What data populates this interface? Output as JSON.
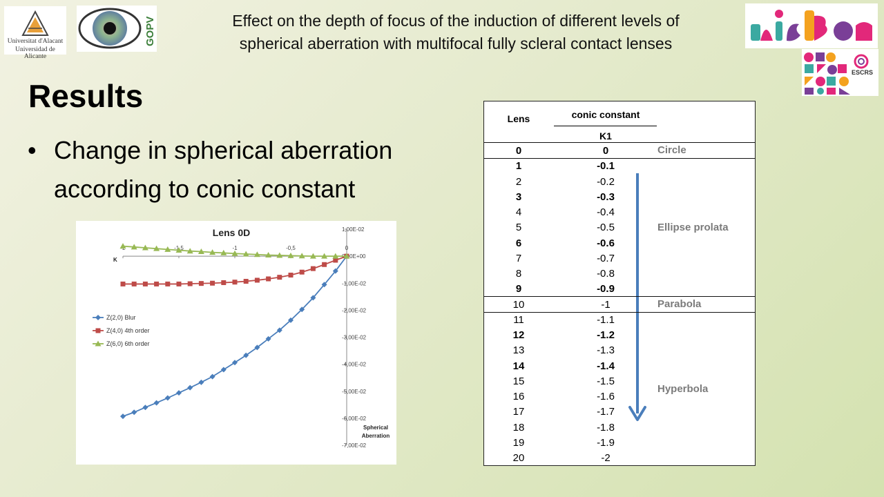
{
  "header": {
    "line1": "Effect on the depth of focus of the induction of different levels of",
    "line2": "spherical aberration with multifocal fully scleral contact lenses"
  },
  "logos": {
    "university_line1": "Universitat d'Alacant",
    "university_line2": "Universidad de Alicante",
    "group": "GOPV",
    "escrs": "ESCRS"
  },
  "slide": {
    "title": "Results",
    "bullet_line1": "Change in spherical aberration",
    "bullet_line2": "according to conic constant"
  },
  "table": {
    "col_lens": "Lens",
    "col_conic": "conic constant",
    "col_k1": "K1",
    "rows": [
      {
        "lens": "0",
        "k1": "0",
        "bold": true
      },
      {
        "lens": "1",
        "k1": "-0.1",
        "bold": true
      },
      {
        "lens": "2",
        "k1": "-0.2",
        "bold": false
      },
      {
        "lens": "3",
        "k1": "-0.3",
        "bold": true
      },
      {
        "lens": "4",
        "k1": "-0.4",
        "bold": false
      },
      {
        "lens": "5",
        "k1": "-0.5",
        "bold": false
      },
      {
        "lens": "6",
        "k1": "-0.6",
        "bold": true
      },
      {
        "lens": "7",
        "k1": "-0.7",
        "bold": false
      },
      {
        "lens": "8",
        "k1": "-0.8",
        "bold": false
      },
      {
        "lens": "9",
        "k1": "-0.9",
        "bold": true
      },
      {
        "lens": "10",
        "k1": "-1",
        "bold": false
      },
      {
        "lens": "11",
        "k1": "-1.1",
        "bold": false
      },
      {
        "lens": "12",
        "k1": "-1.2",
        "bold": true
      },
      {
        "lens": "13",
        "k1": "-1.3",
        "bold": false
      },
      {
        "lens": "14",
        "k1": "-1.4",
        "bold": true
      },
      {
        "lens": "15",
        "k1": "-1.5",
        "bold": false
      },
      {
        "lens": "16",
        "k1": "-1.6",
        "bold": false
      },
      {
        "lens": "17",
        "k1": "-1.7",
        "bold": false
      },
      {
        "lens": "18",
        "k1": "-1.8",
        "bold": false
      },
      {
        "lens": "19",
        "k1": "-1.9",
        "bold": false
      },
      {
        "lens": "20",
        "k1": "-2",
        "bold": false
      }
    ],
    "classes": {
      "circle": "Circle",
      "ellipse": "Ellipse prolata",
      "parabola": "Parabola",
      "hyperbola": "Hyperbola"
    },
    "arrow_color": "#4a7ebb"
  },
  "chart_data": {
    "type": "line",
    "title": "Lens 0D",
    "xlabel": "K",
    "ylabel_line1": "Spherical",
    "ylabel_line2": "Aberration",
    "xlim": [
      -2,
      0
    ],
    "ylim": [
      -0.07,
      0.01
    ],
    "x_ticks": [
      {
        "value": -2,
        "label": "-2"
      },
      {
        "value": -1.5,
        "label": "-1,5"
      },
      {
        "value": -1,
        "label": "-1"
      },
      {
        "value": -0.5,
        "label": "-0,5"
      },
      {
        "value": 0,
        "label": "0"
      }
    ],
    "y_ticks": [
      {
        "value": 0.01,
        "label": "1,00E-02"
      },
      {
        "value": 0,
        "label": "0,00E+00"
      },
      {
        "value": -0.01,
        "label": "-1,00E-02"
      },
      {
        "value": -0.02,
        "label": "-2,00E-02"
      },
      {
        "value": -0.03,
        "label": "-3,00E-02"
      },
      {
        "value": -0.04,
        "label": "-4,00E-02"
      },
      {
        "value": -0.05,
        "label": "-5,00E-02"
      },
      {
        "value": -0.06,
        "label": "-6,00E-02"
      },
      {
        "value": -0.07,
        "label": "-7,00E-02"
      }
    ],
    "legend_position": "left",
    "x": [
      -2,
      -1.9,
      -1.8,
      -1.7,
      -1.6,
      -1.5,
      -1.4,
      -1.3,
      -1.2,
      -1.1,
      -1,
      -0.9,
      -0.8,
      -0.7,
      -0.6,
      -0.5,
      -0.4,
      -0.3,
      -0.2,
      -0.1,
      0
    ],
    "series": [
      {
        "name": "Z(2,0) Blur",
        "marker": "diamond",
        "color": "#4a7ebb",
        "values": [
          -0.0593,
          -0.0578,
          -0.056,
          -0.0543,
          -0.0525,
          -0.0506,
          -0.0487,
          -0.0467,
          -0.0446,
          -0.042,
          -0.0394,
          -0.0367,
          -0.0338,
          -0.0306,
          -0.0274,
          -0.0237,
          -0.0197,
          -0.0154,
          -0.0105,
          -0.0055,
          0
        ]
      },
      {
        "name": "Z(4,0) 4th order",
        "marker": "square",
        "color": "#be4b48",
        "values": [
          -0.0103,
          -0.0103,
          -0.0103,
          -0.0103,
          -0.0103,
          -0.0103,
          -0.0102,
          -0.0101,
          -0.01,
          -0.0098,
          -0.0096,
          -0.0093,
          -0.0089,
          -0.0084,
          -0.0078,
          -0.007,
          -0.0059,
          -0.0046,
          -0.0031,
          -0.0015,
          0
        ]
      },
      {
        "name": "Z(6,0) 6th order",
        "marker": "triangle",
        "color": "#98b954",
        "values": [
          0.0037,
          0.0034,
          0.0031,
          0.0028,
          0.0025,
          0.0022,
          0.0019,
          0.0017,
          0.0014,
          0.0012,
          0.001,
          0.0008,
          0.0006,
          0.0004,
          0.0003,
          0.0002,
          0.0001,
          0.0,
          0.0,
          0.0,
          0
        ]
      }
    ]
  }
}
